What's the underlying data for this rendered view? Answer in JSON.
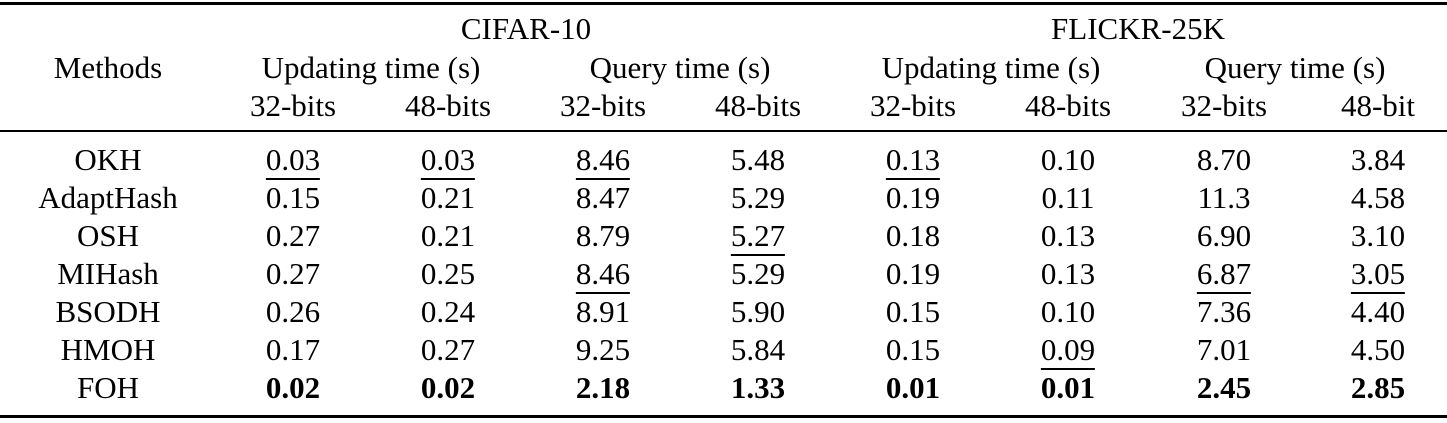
{
  "headers": {
    "methods": "Methods",
    "datasets": [
      "CIFAR-10",
      "FLICKR-25K"
    ],
    "groups": [
      "Updating time (s)",
      "Query time (s)",
      "Updating time (s)",
      "Query time (s)"
    ],
    "bits": [
      "32-bits",
      "48-bits",
      "32-bits",
      "48-bits",
      "32-bits",
      "48-bits",
      "32-bits",
      "48-bit"
    ]
  },
  "rows": [
    {
      "method": "OKH",
      "values": [
        "0.03",
        "0.03",
        "8.46",
        "5.48",
        "0.13",
        "0.10",
        "8.70",
        "3.84"
      ]
    },
    {
      "method": "AdaptHash",
      "values": [
        "0.15",
        "0.21",
        "8.47",
        "5.29",
        "0.19",
        "0.11",
        "11.3",
        "4.58"
      ]
    },
    {
      "method": "OSH",
      "values": [
        "0.27",
        "0.21",
        "8.79",
        "5.27",
        "0.18",
        "0.13",
        "6.90",
        "3.10"
      ]
    },
    {
      "method": "MIHash",
      "values": [
        "0.27",
        "0.25",
        "8.46",
        "5.29",
        "0.19",
        "0.13",
        "6.87",
        "3.05"
      ]
    },
    {
      "method": "BSODH",
      "values": [
        "0.26",
        "0.24",
        "8.91",
        "5.90",
        "0.15",
        "0.10",
        "7.36",
        "4.40"
      ]
    },
    {
      "method": "HMOH",
      "values": [
        "0.17",
        "0.27",
        "9.25",
        "5.84",
        "0.15",
        "0.09",
        "7.01",
        "4.50"
      ]
    },
    {
      "method": "FOH",
      "values": [
        "0.02",
        "0.02",
        "2.18",
        "1.33",
        "0.01",
        "0.01",
        "2.45",
        "2.85"
      ]
    }
  ],
  "underlined": [
    [
      0,
      0
    ],
    [
      0,
      1
    ],
    [
      0,
      2
    ],
    [
      0,
      4
    ],
    [
      2,
      3
    ],
    [
      3,
      2
    ],
    [
      3,
      6
    ],
    [
      3,
      7
    ],
    [
      5,
      5
    ]
  ],
  "bold_row": 6
}
